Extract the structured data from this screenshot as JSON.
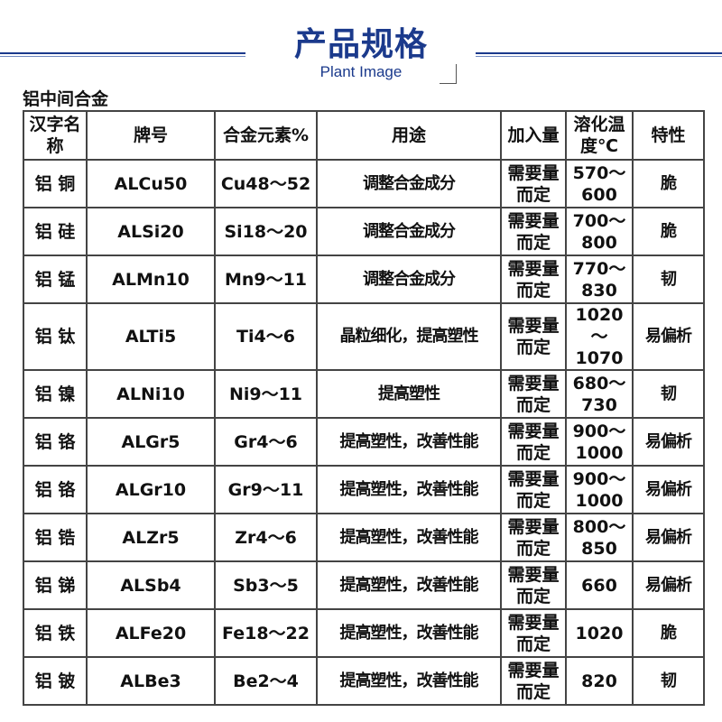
{
  "header": {
    "title": "产品规格",
    "subtitle": "Plant Image",
    "accent": "#1b3a8c"
  },
  "section_title": "铝中间合金",
  "table": {
    "columns": [
      "汉字名称",
      "牌号",
      "合金元素%",
      "用途",
      "加入量",
      "溶化温度℃",
      "特性"
    ],
    "rows": [
      [
        "铝 铜",
        "ALCu50",
        "Cu48～52",
        "调整合金成分",
        "需要量而定",
        "570～600",
        "脆"
      ],
      [
        "铝 硅",
        "ALSi20",
        "Si18～20",
        "调整合金成分",
        "需要量而定",
        "700～800",
        "脆"
      ],
      [
        "铝 锰",
        "ALMn10",
        "Mn9～11",
        "调整合金成分",
        "需要量而定",
        "770～830",
        "韧"
      ],
      [
        "铝 钛",
        "ALTi5",
        "Ti4～6",
        "晶粒细化，提高塑性",
        "需要量而定",
        "1020～1070",
        "易偏析"
      ],
      [
        "铝 镍",
        "ALNi10",
        "Ni9～11",
        "提高塑性",
        "需要量而定",
        "680～730",
        "韧"
      ],
      [
        "铝 铬",
        "ALGr5",
        "Gr4～6",
        "提高塑性，改善性能",
        "需要量而定",
        "900～1000",
        "易偏析"
      ],
      [
        "铝 铬",
        "ALGr10",
        "Gr9～11",
        "提高塑性，改善性能",
        "需要量而定",
        "900～1000",
        "易偏析"
      ],
      [
        "铝 锆",
        "ALZr5",
        "Zr4～6",
        "提高塑性，改善性能",
        "需要量而定",
        "800～850",
        "易偏析"
      ],
      [
        "铝 锑",
        "ALSb4",
        "Sb3～5",
        "提高塑性，改善性能",
        "需要量而定",
        "660",
        "易偏析"
      ],
      [
        "铝 铁",
        "ALFe20",
        "Fe18～22",
        "提高塑性，改善性能",
        "需要量而定",
        "1020",
        "脆"
      ],
      [
        "铝 铍",
        "ALBe3",
        "Be2～4",
        "提高塑性，改善性能",
        "需要量而定",
        "820",
        "韧"
      ]
    ]
  }
}
